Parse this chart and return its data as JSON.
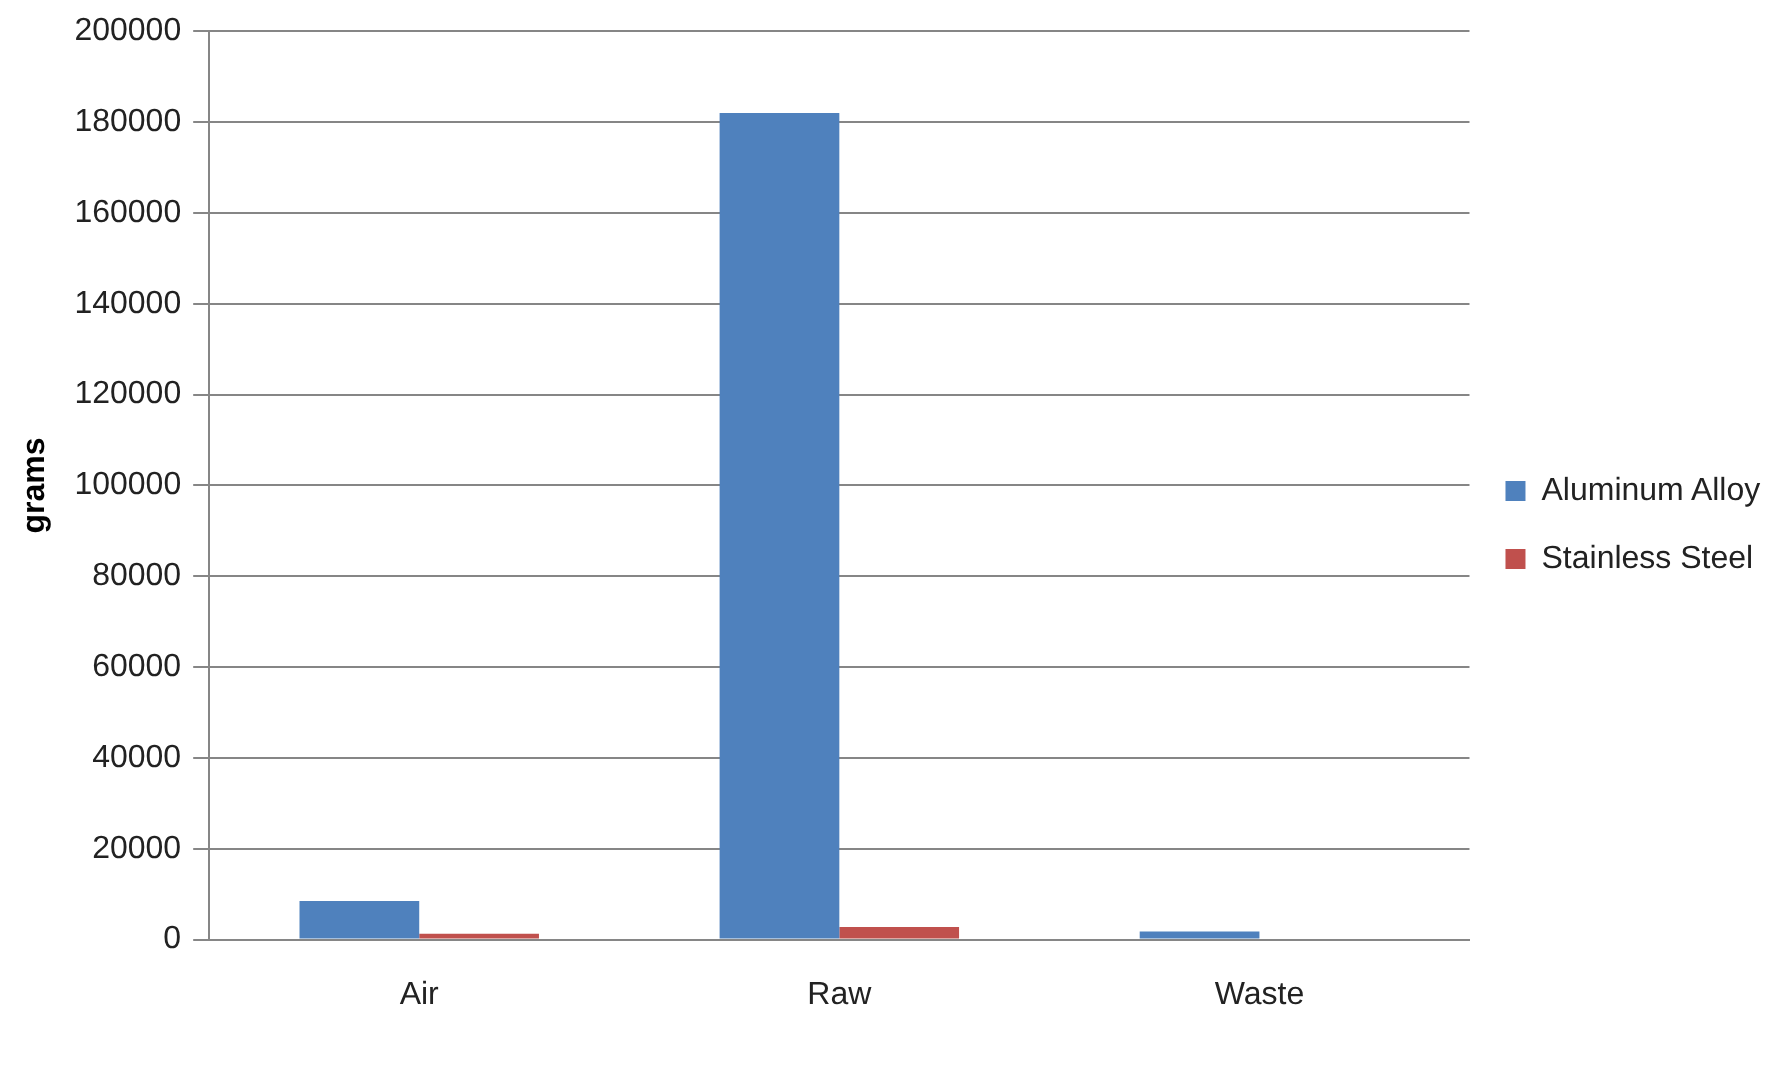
{
  "chart_data": {
    "type": "bar",
    "ylabel": "grams",
    "categories": [
      "Air",
      "Raw",
      "Waste"
    ],
    "series": [
      {
        "name": "Aluminum Alloy",
        "color": "#4f81bd",
        "values": [
          8500,
          182000,
          1800
        ]
      },
      {
        "name": "Stainless Steel",
        "color": "#c0504d",
        "values": [
          1300,
          2800,
          0
        ]
      }
    ],
    "ylim": [
      0,
      200000
    ],
    "yticks": [
      0,
      20000,
      40000,
      60000,
      80000,
      100000,
      120000,
      140000,
      160000,
      180000,
      200000
    ],
    "grid": "y",
    "legend": "right"
  }
}
